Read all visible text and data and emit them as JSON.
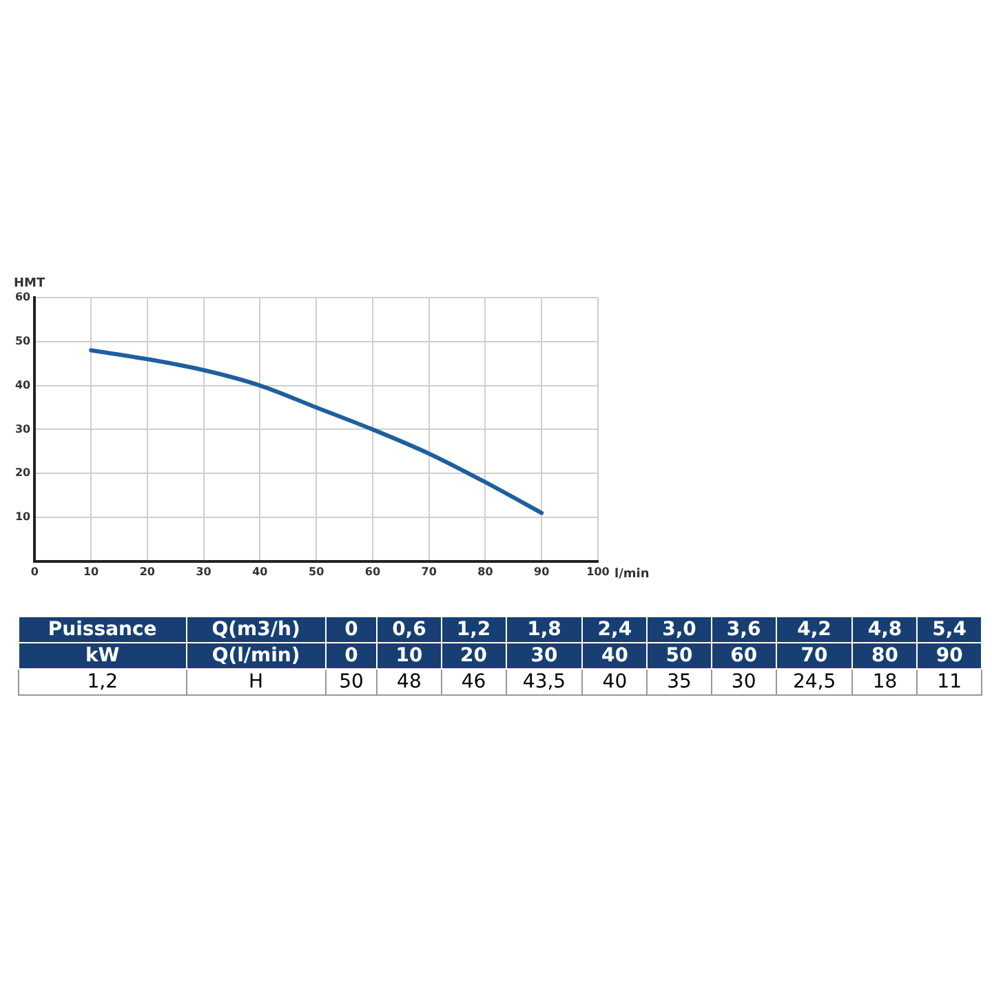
{
  "chart_data": {
    "type": "line",
    "ylabel": "HMT",
    "xlabel": "l/min",
    "x": [
      10,
      20,
      30,
      40,
      50,
      60,
      70,
      80,
      90
    ],
    "series": [
      {
        "color": "#1f5f9e",
        "values": [
          48,
          46,
          43.5,
          40,
          35,
          30,
          24.5,
          18,
          11
        ]
      }
    ],
    "xlim": [
      0,
      100
    ],
    "xticks": [
      0,
      10,
      20,
      30,
      40,
      50,
      60,
      70,
      80,
      90,
      100
    ],
    "ylim": [
      0,
      60
    ],
    "yticks": [
      {
        "value": 0,
        "label": null
      },
      10,
      20,
      30,
      40,
      50,
      60
    ],
    "grid": true,
    "legend": false,
    "marker": "none",
    "line_style": "solid",
    "annotations": [
      "Puissance",
      "Q(m3/h)",
      "0",
      "0,6",
      "1,2",
      "1,8",
      "2,4",
      "3,0",
      "3,6",
      "4,2",
      "4,8",
      "5,4",
      "kW",
      "Q(l/min)",
      "0",
      "10",
      "20",
      "30",
      "40",
      "50",
      "60",
      "70",
      "80",
      "90",
      "1,2",
      "H",
      "50",
      "48",
      "46",
      "43,5",
      "40",
      "35",
      "30",
      "24,5",
      "18",
      "11"
    ]
  }
}
